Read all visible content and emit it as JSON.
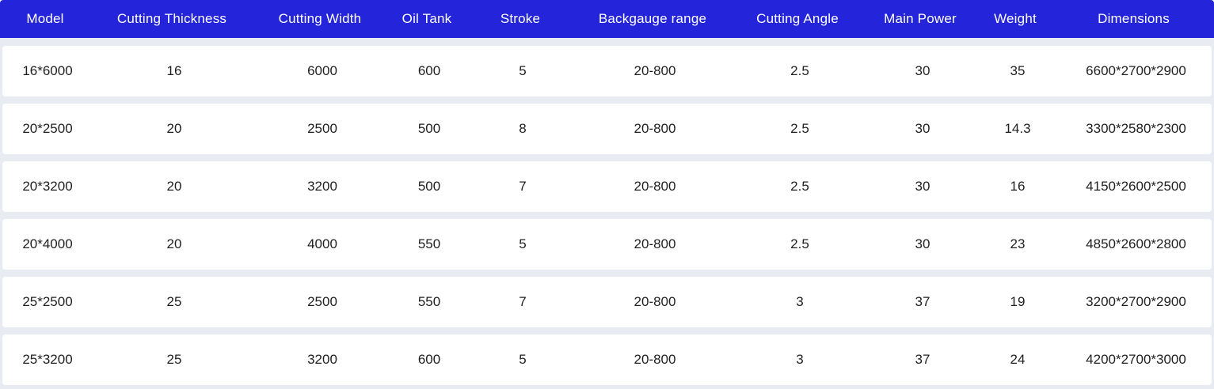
{
  "table": {
    "columns": [
      "Model",
      "Cutting Thickness",
      "Cutting Width",
      "Oil Tank",
      "Stroke",
      "Backgauge range",
      "Cutting Angle",
      "Main Power",
      "Weight",
      "Dimensions"
    ],
    "rows": [
      {
        "cells": [
          "16*6000",
          "16",
          "6000",
          "600",
          "5",
          "20-800",
          "2.5",
          "30",
          "35",
          "6600*2700*2900"
        ]
      },
      {
        "cells": [
          "20*2500",
          "20",
          "2500",
          "500",
          "8",
          "20-800",
          "2.5",
          "30",
          "14.3",
          "3300*2580*2300"
        ]
      },
      {
        "cells": [
          "20*3200",
          "20",
          "3200",
          "500",
          "7",
          "20-800",
          "2.5",
          "30",
          "16",
          "4150*2600*2500"
        ]
      },
      {
        "cells": [
          "20*4000",
          "20",
          "4000",
          "550",
          "5",
          "20-800",
          "2.5",
          "30",
          "23",
          "4850*2600*2800"
        ]
      },
      {
        "cells": [
          "25*2500",
          "25",
          "2500",
          "550",
          "7",
          "20-800",
          "3",
          "37",
          "19",
          "3200*2700*2900"
        ]
      },
      {
        "cells": [
          "25*3200",
          "25",
          "3200",
          "600",
          "5",
          "20-800",
          "3",
          "37",
          "24",
          "4200*2700*3000"
        ]
      }
    ]
  },
  "colors": {
    "header_bg": "#2424db",
    "header_text": "#ffffff",
    "row_bg": "#ffffff",
    "separator_bg": "#e8ecf2",
    "cell_text": "#1f1f1f"
  }
}
